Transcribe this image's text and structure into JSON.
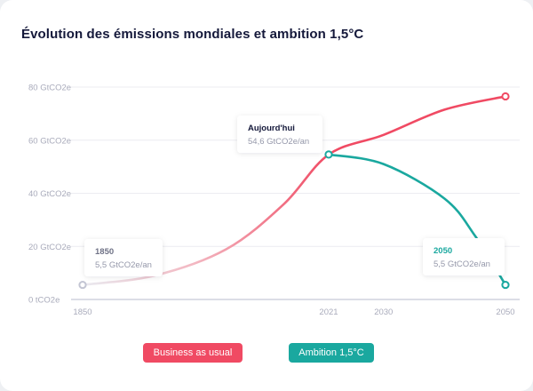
{
  "page": {
    "title": "Évolution des émissions mondiales et ambition 1,5°C"
  },
  "chart_data": {
    "type": "line",
    "title": "Évolution des émissions mondiales et ambition 1,5°C",
    "xlabel": "",
    "ylabel": "",
    "unit": "GtCO2e",
    "ylim": [
      0,
      80
    ],
    "y_ticks": [
      {
        "value": 0,
        "label": "0 tCO2e"
      },
      {
        "value": 20,
        "label": "20 GtCO2e"
      },
      {
        "value": 40,
        "label": "40 GtCO2e"
      },
      {
        "value": 60,
        "label": "60 GtCO2e"
      },
      {
        "value": 80,
        "label": "80 GtCO2e"
      }
    ],
    "x_ticks": [
      {
        "value": 1850,
        "label": "1850"
      },
      {
        "value": 2021,
        "label": "2021"
      },
      {
        "value": 2030,
        "label": "2030"
      },
      {
        "value": 2050,
        "label": "2050"
      }
    ],
    "series": [
      {
        "name": "Business as usual",
        "color": "#f04a63",
        "fade_color": "#e6e7ee",
        "points": [
          {
            "x": 1850,
            "y": 5.5
          },
          {
            "x": 1900,
            "y": 9
          },
          {
            "x": 1950,
            "y": 19
          },
          {
            "x": 1990,
            "y": 36
          },
          {
            "x": 2021,
            "y": 54.6
          },
          {
            "x": 2030,
            "y": 62
          },
          {
            "x": 2040,
            "y": 71.5
          },
          {
            "x": 2050,
            "y": 76.5
          }
        ]
      },
      {
        "name": "Ambition 1,5°C",
        "color": "#1aa89f",
        "points": [
          {
            "x": 2021,
            "y": 54.6
          },
          {
            "x": 2030,
            "y": 51
          },
          {
            "x": 2040,
            "y": 38
          },
          {
            "x": 2045,
            "y": 24
          },
          {
            "x": 2050,
            "y": 5.5
          }
        ]
      }
    ],
    "annotations": [
      {
        "key": "start",
        "title": "1850",
        "value": "5,5 GtCO2e/an",
        "x": 1850,
        "y": 5.5,
        "series": 0
      },
      {
        "key": "today",
        "title": "Aujourd'hui",
        "value": "54,6 GtCO2e/an",
        "x": 2021,
        "y": 54.6,
        "series": 1
      },
      {
        "key": "end",
        "title": "2050",
        "value": "5,5 GtCO2e/an",
        "x": 2050,
        "y": 5.5,
        "series": 1
      }
    ]
  },
  "legend": {
    "business_as_usual": "Business as usual",
    "ambition": "Ambition 1,5°C"
  }
}
